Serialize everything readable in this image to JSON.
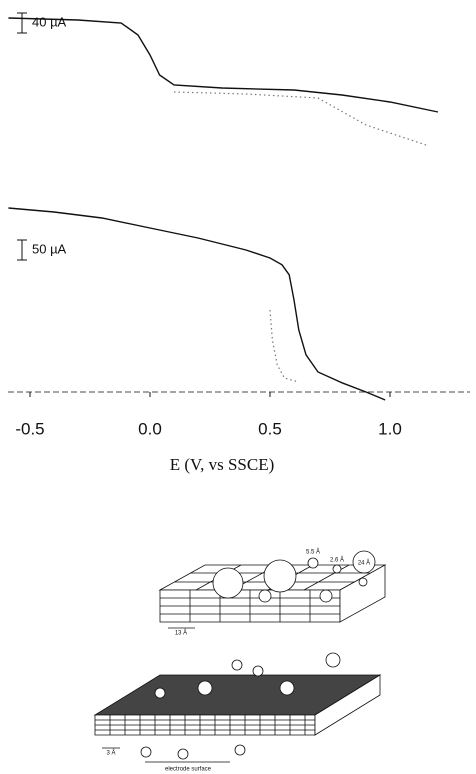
{
  "chart_data": [
    {
      "type": "line",
      "xlim": [
        -0.6,
        1.2
      ],
      "ylim": [
        -320,
        0
      ],
      "scale_bar": {
        "value": 40,
        "label": "40 µA"
      },
      "series": [
        {
          "style": "solid",
          "color": "#111111",
          "x": [
            -0.59,
            -0.3,
            -0.12,
            -0.05,
            0.0,
            0.04,
            0.1,
            0.3,
            0.6,
            0.8,
            1.0,
            1.2
          ],
          "values": [
            -36,
            -40,
            -46,
            -70,
            -110,
            -150,
            -170,
            -176,
            -180,
            -190,
            -204,
            -224
          ]
        },
        {
          "style": "dotted",
          "color": "#777777",
          "x": [
            0.1,
            0.4,
            0.7,
            0.9,
            1.15
          ],
          "values": [
            -184,
            -188,
            -196,
            -250,
            -290
          ]
        }
      ]
    },
    {
      "type": "line",
      "xlim": [
        -0.6,
        1.2
      ],
      "ylim": [
        -560,
        0
      ],
      "xticks": [
        -0.5,
        {
          "value": 0,
          "label": "0.0"
        },
        0.5,
        {
          "value": 1,
          "label": "1.0"
        }
      ],
      "xlabel": "E (V, vs SSCE)",
      "scale_bar": {
        "value": 50,
        "label": "50 µA"
      },
      "series": [
        {
          "style": "solid",
          "color": "#111111",
          "x": [
            -0.59,
            -0.4,
            -0.2,
            0.0,
            0.2,
            0.4,
            0.5,
            0.55,
            0.58,
            0.6,
            0.62,
            0.65,
            0.7,
            0.8,
            0.9,
            0.98
          ],
          "values": [
            -70,
            -80,
            -95,
            -120,
            -145,
            -175,
            -195,
            -212,
            -237,
            -300,
            -375,
            -437,
            -480,
            -507,
            -530,
            -550
          ]
        },
        {
          "style": "dotted",
          "color": "#777777",
          "x": [
            0.5,
            0.51,
            0.53,
            0.56,
            0.62
          ],
          "values": [
            -325,
            -400,
            -462,
            -495,
            -505
          ]
        }
      ]
    }
  ],
  "diagram": {
    "labels": [
      "5.5 Å",
      "2.6 Å",
      "24 Å",
      "13 Å",
      "3 Å",
      "electrode surface"
    ]
  }
}
